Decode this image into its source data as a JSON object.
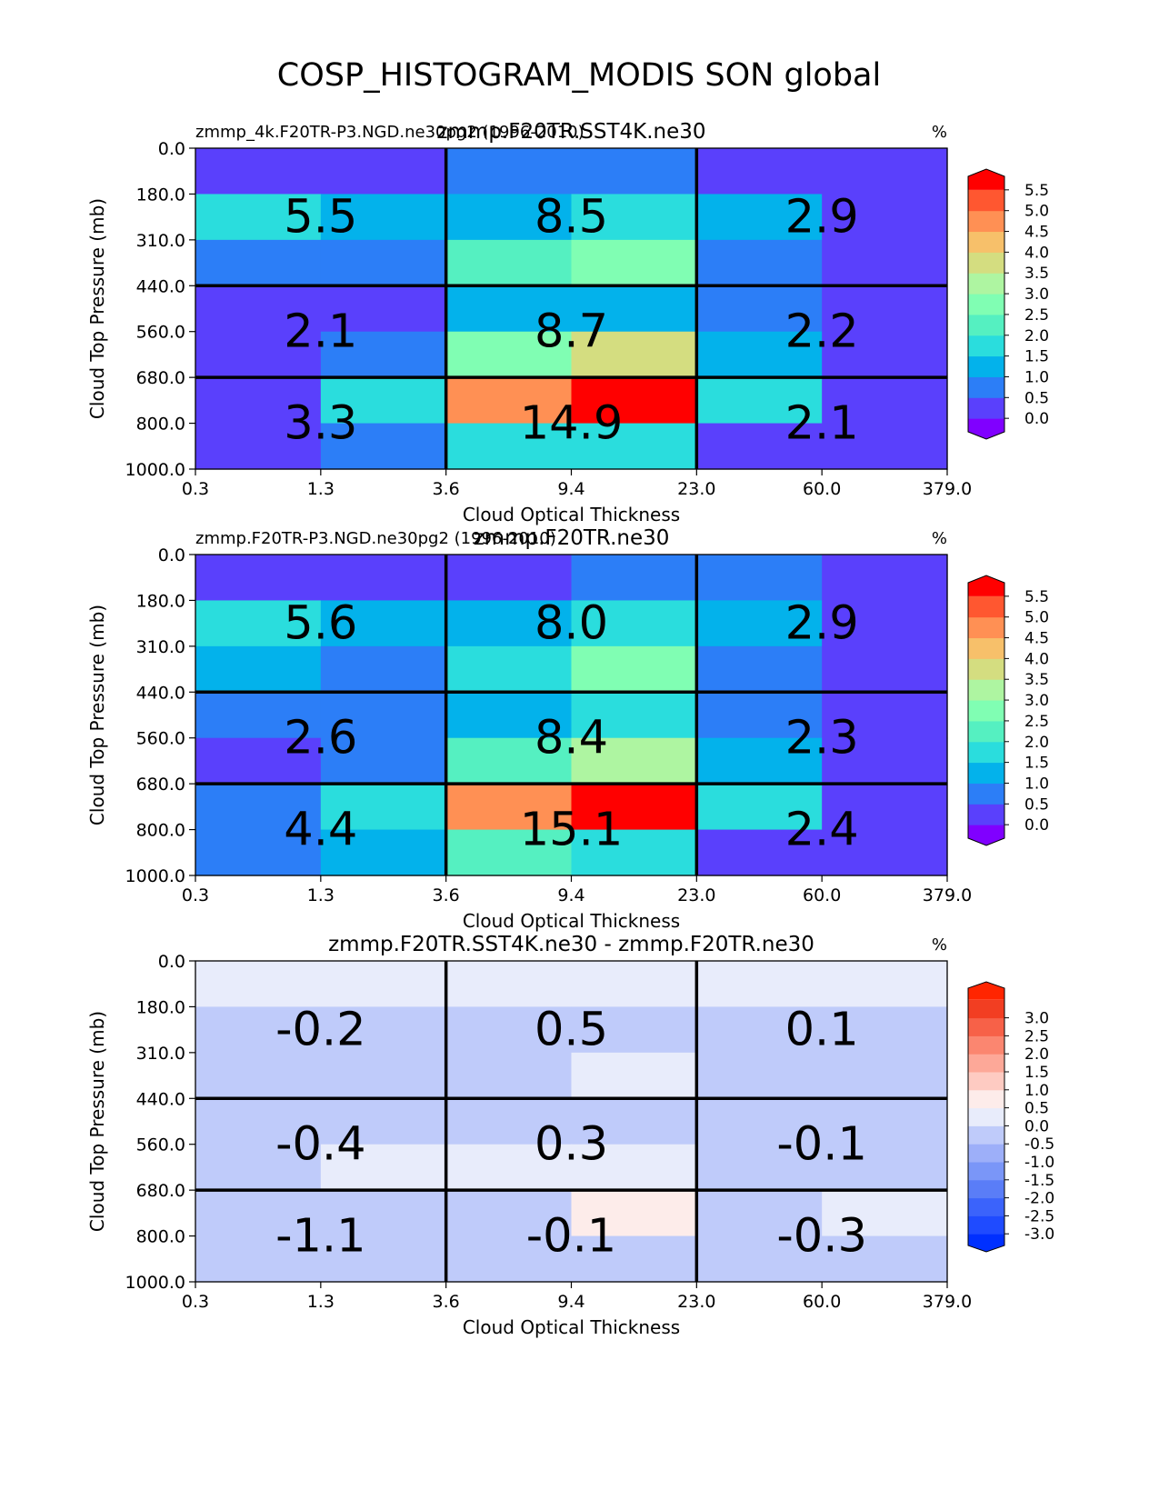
{
  "figure_title": "COSP_HISTOGRAM_MODIS SON global",
  "chart_data": [
    {
      "type": "heatmap",
      "title": "zmmp.F20TR.SST4K.ne30",
      "subtitle_left": "zmmp_4k.F20TR-P3.NGD.ne30pg2 (1996-2010)",
      "units": "%",
      "xlabel": "Cloud Optical Thickness",
      "ylabel": "Cloud Top Pressure (mb)",
      "x_ticks": [
        "0.3",
        "1.3",
        "3.6",
        "9.4",
        "23.0",
        "60.0",
        "379.0"
      ],
      "y_ticks": [
        "0.0",
        "180.0",
        "310.0",
        "440.0",
        "560.0",
        "680.0",
        "800.0",
        "1000.0"
      ],
      "values": [
        [
          0.2,
          0.2,
          0.8,
          0.8,
          0.4,
          0.2
        ],
        [
          1.9,
          1.4,
          1.4,
          1.9,
          1.4,
          0.2
        ],
        [
          0.8,
          0.8,
          2.0,
          2.9,
          0.8,
          0.2
        ],
        [
          0.3,
          0.3,
          1.4,
          1.4,
          0.8,
          0.2
        ],
        [
          0.3,
          0.8,
          2.9,
          3.8,
          1.4,
          0.2
        ],
        [
          0.3,
          1.9,
          4.6,
          6.0,
          1.9,
          0.2
        ],
        [
          0.3,
          0.8,
          1.9,
          1.9,
          0.2,
          0.2
        ]
      ],
      "box_labels": [
        [
          "5.5",
          "8.5",
          "2.9"
        ],
        [
          "2.1",
          "8.7",
          "2.2"
        ],
        [
          "3.3",
          "14.9",
          "2.1"
        ]
      ],
      "colorbar": {
        "levels": [
          0.0,
          0.5,
          1.0,
          1.5,
          2.0,
          2.5,
          3.0,
          3.5,
          4.0,
          4.5,
          5.0,
          5.5
        ],
        "colors": [
          "#8000ff",
          "#5a40fc",
          "#2c7ef7",
          "#03b2eb",
          "#2adddd",
          "#55f0c1",
          "#80feb3",
          "#aef5a1",
          "#d4dd80",
          "#f7c06a",
          "#ff9054",
          "#ff5730",
          "#ff0000"
        ],
        "tick_labels": [
          "5.5",
          "5.0",
          "4.5",
          "4.0",
          "3.5",
          "3.0",
          "2.5",
          "2.0",
          "1.5",
          "1.0",
          "0.5",
          "0.0"
        ]
      }
    },
    {
      "type": "heatmap",
      "title": "zmmp.F20TR.ne30",
      "subtitle_left": "zmmp.F20TR-P3.NGD.ne30pg2 (1996-2010)",
      "units": "%",
      "xlabel": "Cloud Optical Thickness",
      "ylabel": "Cloud Top Pressure (mb)",
      "x_ticks": [
        "0.3",
        "1.3",
        "3.6",
        "9.4",
        "23.0",
        "60.0",
        "379.0"
      ],
      "y_ticks": [
        "0.0",
        "180.0",
        "310.0",
        "440.0",
        "560.0",
        "680.0",
        "800.0",
        "1000.0"
      ],
      "values": [
        [
          0.2,
          0.2,
          0.2,
          0.8,
          0.8,
          0.2
        ],
        [
          1.9,
          1.4,
          1.4,
          1.9,
          1.4,
          0.2
        ],
        [
          1.4,
          0.8,
          1.9,
          2.9,
          0.8,
          0.2
        ],
        [
          0.8,
          0.8,
          1.4,
          1.9,
          0.8,
          0.2
        ],
        [
          0.2,
          0.8,
          2.4,
          3.4,
          1.4,
          0.2
        ],
        [
          0.8,
          1.9,
          4.6,
          6.0,
          1.9,
          0.2
        ],
        [
          0.8,
          1.4,
          2.4,
          1.9,
          0.2,
          0.2
        ]
      ],
      "box_labels": [
        [
          "5.6",
          "8.0",
          "2.9"
        ],
        [
          "2.6",
          "8.4",
          "2.3"
        ],
        [
          "4.4",
          "15.1",
          "2.4"
        ]
      ],
      "colorbar": {
        "levels": [
          0.0,
          0.5,
          1.0,
          1.5,
          2.0,
          2.5,
          3.0,
          3.5,
          4.0,
          4.5,
          5.0,
          5.5
        ],
        "colors": [
          "#8000ff",
          "#5a40fc",
          "#2c7ef7",
          "#03b2eb",
          "#2adddd",
          "#55f0c1",
          "#80feb3",
          "#aef5a1",
          "#d4dd80",
          "#f7c06a",
          "#ff9054",
          "#ff5730",
          "#ff0000"
        ],
        "tick_labels": [
          "5.5",
          "5.0",
          "4.5",
          "4.0",
          "3.5",
          "3.0",
          "2.5",
          "2.0",
          "1.5",
          "1.0",
          "0.5",
          "0.0"
        ]
      }
    },
    {
      "type": "heatmap",
      "title": "zmmp.F20TR.SST4K.ne30 - zmmp.F20TR.ne30",
      "subtitle_left": "",
      "units": "%",
      "xlabel": "Cloud Optical Thickness",
      "ylabel": "Cloud Top Pressure (mb)",
      "x_ticks": [
        "0.3",
        "1.3",
        "3.6",
        "9.4",
        "23.0",
        "60.0",
        "379.0"
      ],
      "y_ticks": [
        "0.0",
        "180.0",
        "310.0",
        "440.0",
        "560.0",
        "680.0",
        "800.0",
        "1000.0"
      ],
      "values": [
        [
          0.1,
          0.1,
          0.1,
          0.1,
          0.1,
          0.1
        ],
        [
          -0.1,
          -0.1,
          -0.1,
          -0.1,
          -0.1,
          -0.1
        ],
        [
          -0.1,
          -0.1,
          -0.1,
          0.1,
          -0.1,
          -0.1
        ],
        [
          -0.1,
          -0.1,
          -0.1,
          -0.1,
          -0.1,
          -0.1
        ],
        [
          -0.1,
          0.1,
          0.1,
          0.1,
          -0.1,
          -0.1
        ],
        [
          -0.1,
          -0.1,
          -0.1,
          0.7,
          -0.1,
          0.1
        ],
        [
          -0.1,
          -0.1,
          -0.1,
          -0.1,
          -0.1,
          -0.1
        ]
      ],
      "box_labels": [
        [
          "-0.2",
          "0.5",
          "0.1"
        ],
        [
          "-0.4",
          "0.3",
          "-0.1"
        ],
        [
          "-1.1",
          "-0.1",
          "-0.3"
        ]
      ],
      "colorbar": {
        "levels": [
          -3.0,
          -2.5,
          -2.0,
          -1.5,
          -1.0,
          -0.5,
          0.0,
          0.5,
          1.0,
          1.5,
          2.0,
          2.5,
          3.0
        ],
        "colors": [
          "#0030ff",
          "#1f4bff",
          "#3b63fb",
          "#5a7df7",
          "#7a96f8",
          "#9daff9",
          "#bfcbfa",
          "#e8ecfb",
          "#fdecea",
          "#fecbc2",
          "#fda898",
          "#fb8670",
          "#f76148",
          "#f23e22",
          "#ff2500"
        ],
        "tick_labels": [
          "3.0",
          "2.5",
          "2.0",
          "1.5",
          "1.0",
          "0.5",
          "0.0",
          "-0.5",
          "-1.0",
          "-1.5",
          "-2.0",
          "-2.5",
          "-3.0"
        ]
      }
    }
  ]
}
